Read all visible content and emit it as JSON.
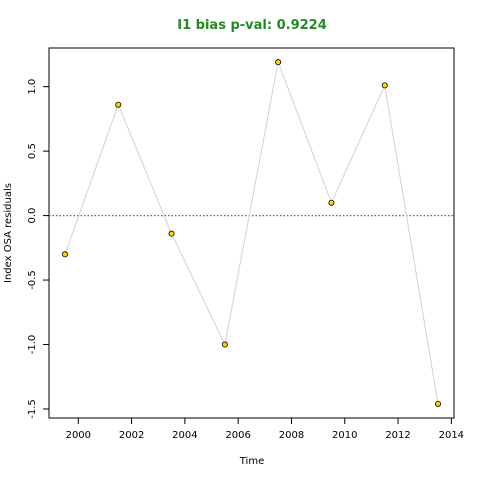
{
  "chart_data": {
    "type": "scatter",
    "title": "I1 bias p-val: 0.9224",
    "title_color": "#228B22",
    "xlabel": "Time",
    "ylabel": "Index OSA residuals",
    "xlim": [
      1998.9,
      2014.1
    ],
    "ylim": [
      -1.57,
      1.3
    ],
    "x_ticks": [
      2000,
      2002,
      2004,
      2006,
      2008,
      2010,
      2012,
      2014
    ],
    "x_tick_labels": [
      "2000",
      "2002",
      "2004",
      "2006",
      "2008",
      "2010",
      "2012",
      "2014"
    ],
    "y_ticks": [
      -1.5,
      -1.0,
      -0.5,
      0.0,
      0.5,
      1.0
    ],
    "y_tick_labels": [
      "-1.5",
      "-1.0",
      "-0.5",
      "0.0",
      "0.5",
      "1.0"
    ],
    "reference_line": 0.0,
    "grid": false,
    "series": [
      {
        "x": [
          1999.5,
          2001.5,
          2003.5,
          2005.5,
          2007.5,
          2009.5,
          2011.5,
          2013.5
        ],
        "y": [
          -0.3,
          0.86,
          -0.14,
          -1.0,
          1.19,
          0.1,
          1.01,
          -1.46
        ],
        "point_color": "#FFD700",
        "line_color": "#d3d3d3"
      }
    ]
  }
}
